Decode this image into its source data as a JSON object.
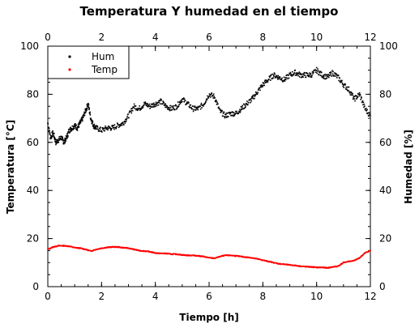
{
  "chart_data": {
    "type": "scatter",
    "title": "Temperatura Y humedad en el tiempo",
    "xlabel": "Tiempo [h]",
    "ylabel": "Temperatura [°C]",
    "ylabel_right": "Humedad [%]",
    "xlim": [
      0,
      12
    ],
    "ylim": [
      0,
      100
    ],
    "ylim_right": [
      0,
      100
    ],
    "x_ticks": [
      0,
      2,
      4,
      6,
      8,
      10,
      12
    ],
    "y_ticks": [
      0,
      20,
      40,
      60,
      80,
      100
    ],
    "x_tick_labels": [
      "0",
      "2",
      "4",
      "6",
      "8",
      "10",
      "12"
    ],
    "y_tick_labels": [
      "0",
      "20",
      "40",
      "60",
      "80",
      "100"
    ],
    "grid": false,
    "legend": "top-left",
    "series": [
      {
        "name": "Hum",
        "color": "#000000",
        "axis": "right",
        "x": [
          0,
          0.1,
          0.2,
          0.3,
          0.4,
          0.5,
          0.6,
          0.7,
          0.8,
          0.9,
          1.0,
          1.1,
          1.2,
          1.3,
          1.4,
          1.5,
          1.6,
          1.7,
          1.8,
          2.0,
          2.2,
          2.4,
          2.6,
          2.8,
          3.0,
          3.2,
          3.4,
          3.6,
          3.8,
          4.0,
          4.2,
          4.4,
          4.6,
          4.8,
          5.0,
          5.2,
          5.4,
          5.6,
          5.8,
          6.0,
          6.2,
          6.4,
          6.6,
          6.8,
          7.0,
          7.2,
          7.4,
          7.6,
          7.8,
          8.0,
          8.2,
          8.4,
          8.6,
          8.8,
          9.0,
          9.2,
          9.4,
          9.6,
          9.8,
          10.0,
          10.2,
          10.4,
          10.6,
          10.8,
          11.0,
          11.2,
          11.4,
          11.6,
          11.8,
          12.0
        ],
        "y": [
          68,
          62,
          64,
          60,
          61,
          62,
          60,
          62,
          65,
          66,
          67,
          66,
          68,
          70,
          73,
          76,
          70,
          67,
          66,
          65,
          66,
          66,
          67,
          68,
          71,
          75,
          74,
          76,
          75,
          76,
          77,
          75,
          74,
          75,
          78,
          76,
          74,
          74,
          76,
          80,
          79,
          73,
          71,
          72,
          72,
          74,
          76,
          78,
          81,
          84,
          86,
          88,
          87,
          86,
          88,
          89,
          88,
          88,
          88,
          90,
          88,
          87,
          89,
          87,
          84,
          82,
          78,
          80,
          74,
          71
        ]
      },
      {
        "name": "Temp",
        "color": "#ff0000",
        "axis": "left",
        "x": [
          0,
          0.2,
          0.4,
          0.6,
          0.8,
          1.0,
          1.2,
          1.4,
          1.6,
          1.8,
          2.0,
          2.2,
          2.4,
          2.6,
          2.8,
          3.0,
          3.2,
          3.4,
          3.6,
          3.8,
          4.0,
          4.2,
          4.4,
          4.6,
          4.8,
          5.0,
          5.2,
          5.4,
          5.6,
          5.8,
          6.0,
          6.2,
          6.4,
          6.6,
          6.8,
          7.0,
          7.2,
          7.4,
          7.6,
          7.8,
          8.0,
          8.2,
          8.4,
          8.6,
          8.8,
          9.0,
          9.2,
          9.4,
          9.6,
          9.8,
          10.0,
          10.2,
          10.4,
          10.6,
          10.8,
          11.0,
          11.2,
          11.4,
          11.6,
          11.8,
          12.0
        ],
        "y": [
          15.5,
          16.5,
          17,
          17,
          16.8,
          16.2,
          16,
          15.5,
          14.8,
          15.5,
          16,
          16.3,
          16.5,
          16.5,
          16.2,
          16,
          15.5,
          15,
          14.8,
          14.5,
          14,
          13.8,
          13.8,
          13.5,
          13.5,
          13.2,
          13,
          13,
          12.8,
          12.5,
          12,
          11.8,
          12.5,
          13,
          13,
          12.8,
          12.5,
          12.2,
          12,
          11.5,
          11,
          10.5,
          10,
          9.5,
          9.3,
          9,
          8.8,
          8.5,
          8.3,
          8.2,
          8,
          8,
          7.8,
          8.2,
          8.5,
          10,
          10.5,
          10.8,
          12,
          14,
          15
        ]
      }
    ]
  }
}
